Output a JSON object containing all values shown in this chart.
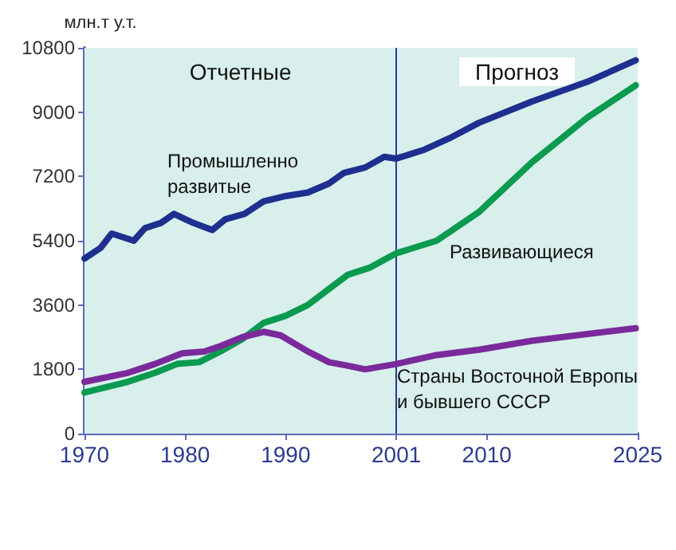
{
  "chart_data": {
    "type": "line",
    "ylabel": "млн.т у.т.",
    "xlim": [
      1970,
      2025
    ],
    "xticks": [
      1970,
      1980,
      1990,
      2001,
      2010,
      2025
    ],
    "ylim": [
      0,
      10800
    ],
    "yticks": [
      0,
      1800,
      3600,
      5400,
      7200,
      9000,
      10800
    ],
    "grid": false,
    "legend": false,
    "marker": "none",
    "line_style": "solid",
    "series": [
      {
        "name": "Промышленно\nразвитые",
        "color": "#1f2f8f",
        "x": [
          1970,
          1971.6,
          1972.7,
          1974.9,
          1976,
          1977.6,
          1978.9,
          1980.8,
          1982.7,
          1984,
          1985.9,
          1987.8,
          1990,
          1992.2,
          1994.3,
          1995.8,
          1997.9,
          1999.8,
          2001,
          2003.8,
          2006.5,
          2009.2,
          2014.5,
          2020,
          2024.8
        ],
        "values": [
          4900,
          5200,
          5600,
          5400,
          5750,
          5900,
          6150,
          5900,
          5700,
          6000,
          6150,
          6500,
          6650,
          6750,
          7000,
          7300,
          7450,
          7750,
          7700,
          7950,
          8300,
          8700,
          9300,
          9850,
          10450
        ]
      },
      {
        "name": "Развивающиеся",
        "color": "#0a9a50",
        "x": [
          1970,
          1974.3,
          1977,
          1979.2,
          1981.4,
          1983.5,
          1985.7,
          1987.8,
          1990,
          1992.2,
          1994.3,
          1996.2,
          1998.4,
          2000,
          2001,
          2005,
          2009.2,
          2014.5,
          2020,
          2024.8
        ],
        "values": [
          1150,
          1450,
          1700,
          1950,
          2000,
          2300,
          2650,
          3100,
          3300,
          3600,
          4050,
          4450,
          4650,
          4900,
          5050,
          5400,
          6200,
          7600,
          8850,
          9750
        ]
      },
      {
        "name": "Страны Восточной Европы\nи бывшего СССР",
        "color": "#7a2a9a",
        "x": [
          1970,
          1974.3,
          1977,
          1979.7,
          1981.9,
          1983.5,
          1985.7,
          1987.8,
          1989.5,
          1992.2,
          1994.3,
          1996.2,
          1997.9,
          2001,
          2005,
          2009.2,
          2014.5,
          2024.8
        ],
        "values": [
          1450,
          1700,
          1950,
          2250,
          2300,
          2450,
          2700,
          2850,
          2750,
          2300,
          2000,
          1900,
          1800,
          1950,
          2200,
          2350,
          2600,
          2950
        ]
      }
    ],
    "bands": [
      {
        "axis": "x",
        "from": 1970,
        "to": 2001,
        "label": "Отчетные",
        "color": "#d8efec"
      },
      {
        "axis": "x",
        "from": 2001,
        "to": 2025,
        "label": "Прогноз",
        "color": "#d8efec"
      }
    ],
    "ref_lines": [
      {
        "axis": "x",
        "value": 2001,
        "color": "#2b3a8c"
      }
    ]
  }
}
